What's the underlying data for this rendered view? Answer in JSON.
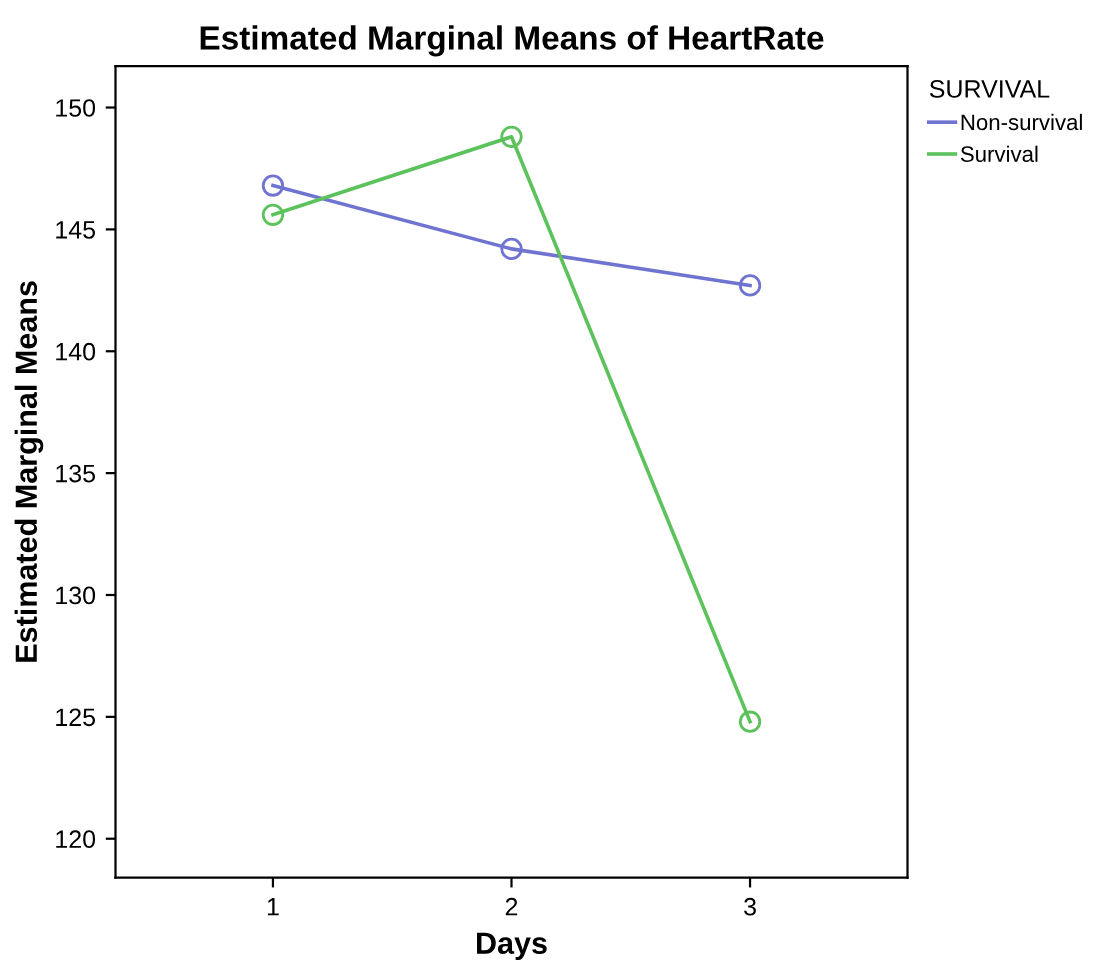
{
  "chart_data": {
    "type": "line",
    "title": "Estimated Marginal Means of HeartRate",
    "xlabel": "Days",
    "ylabel": "Estimated Marginal Means",
    "categories": [
      "1",
      "2",
      "3"
    ],
    "series": [
      {
        "name": "Non-survival",
        "color": "#6f74d0",
        "values": [
          146.8,
          144.2,
          142.7
        ]
      },
      {
        "name": "Survival",
        "color": "#5cc25c",
        "values": [
          145.6,
          148.8,
          124.8
        ]
      }
    ],
    "ylim": [
      118.4,
      151.7
    ],
    "yticks": [
      120,
      125,
      130,
      135,
      140,
      145,
      150
    ],
    "legend_title": "SURVIVAL",
    "legend": "top right",
    "marker": "circle",
    "line_style": "solid",
    "grid": false
  }
}
